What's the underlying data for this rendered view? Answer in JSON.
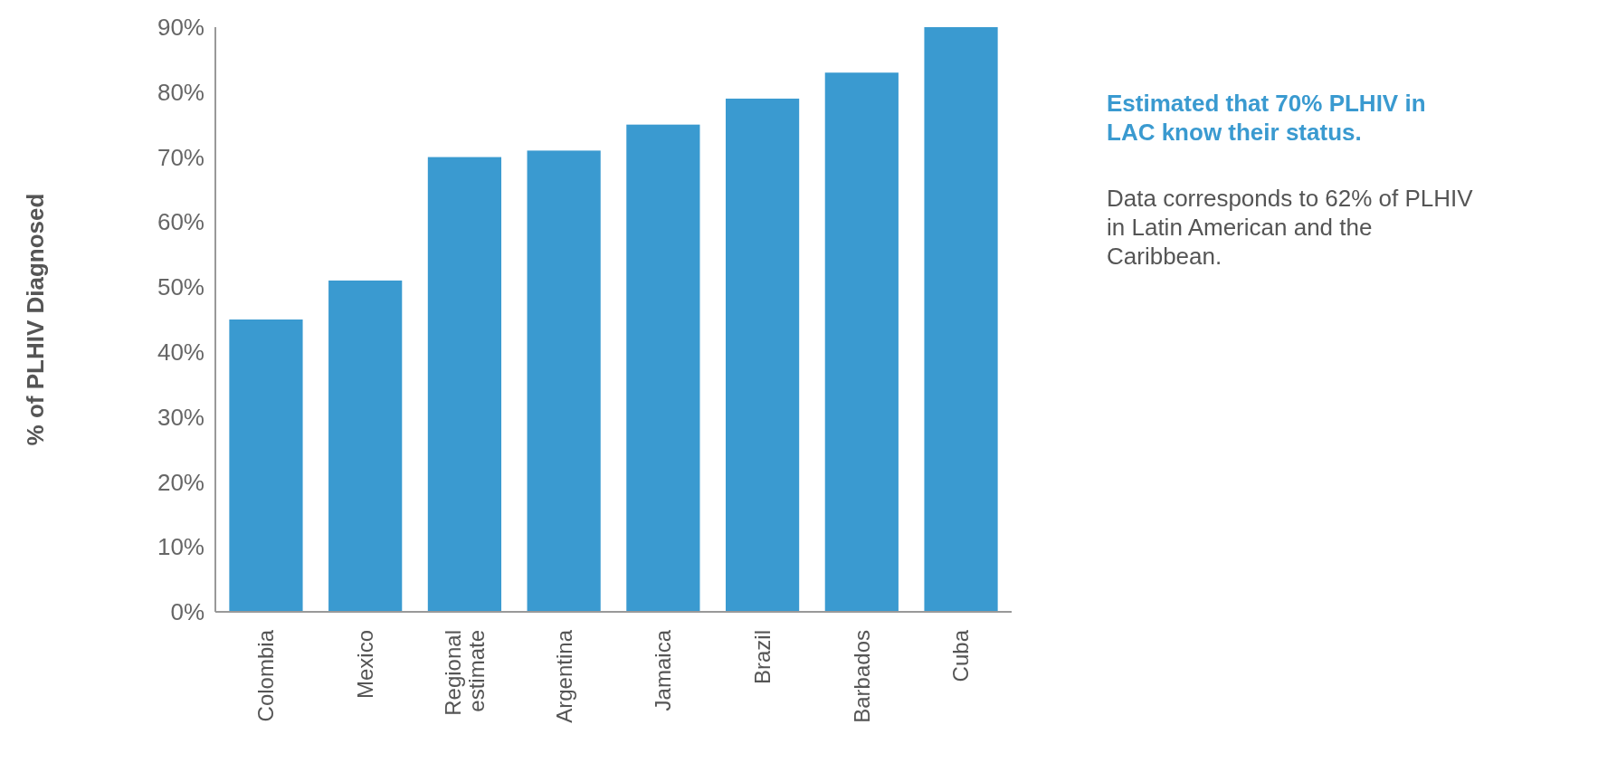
{
  "chart_data": {
    "type": "bar",
    "ylabel": "% of PLHIV Diagnosed",
    "categories": [
      "Colombia",
      "Mexico",
      "Regional estimate",
      "Argentina",
      "Jamaica",
      "Brazil",
      "Barbados",
      "Cuba"
    ],
    "values": [
      45,
      51,
      70,
      71,
      75,
      79,
      83,
      90
    ],
    "color": "#3a9ad0",
    "ylim": [
      0,
      90
    ],
    "yticks": [
      {
        "value": 0,
        "label": "0%"
      },
      {
        "value": 10,
        "label": "10%"
      },
      {
        "value": 20,
        "label": "20%"
      },
      {
        "value": 30,
        "label": "30%"
      },
      {
        "value": 40,
        "label": "40%"
      },
      {
        "value": 50,
        "label": "50%"
      },
      {
        "value": 60,
        "label": "60%"
      },
      {
        "value": 70,
        "label": "70%"
      },
      {
        "value": 80,
        "label": "80%"
      },
      {
        "value": 90,
        "label": "90%"
      }
    ],
    "grid": false,
    "annotations": [
      "Estimated that 70% PLHIV in LAC know their status.",
      "Data corresponds to 62% of PLHIV in Latin American and  the Caribbean."
    ]
  }
}
